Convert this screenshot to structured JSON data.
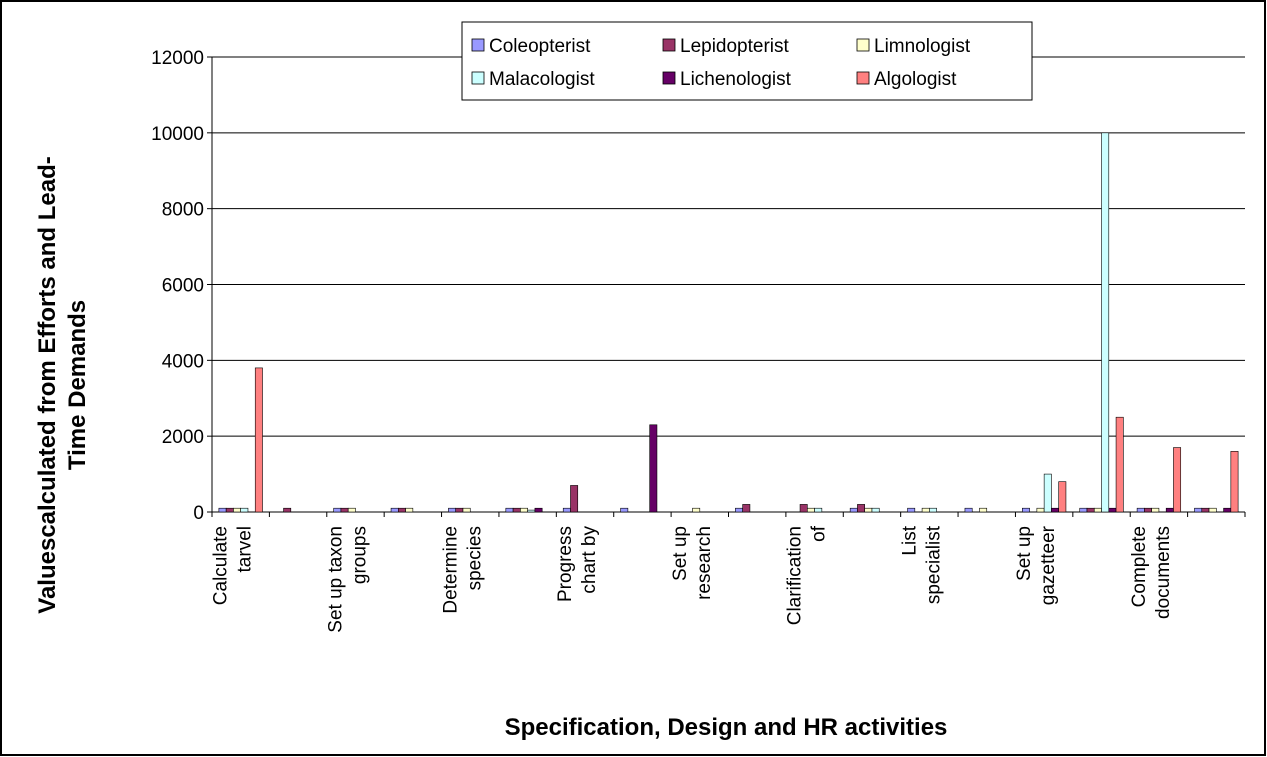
{
  "chart_data": {
    "type": "bar",
    "x_label": "Specification, Design and HR activities",
    "y_label": "Valuescalculated from Efforts and Lead-Time Demands",
    "categories": [
      "Calculate tarvel",
      null,
      "Set up taxon groups",
      null,
      "Determine species",
      null,
      "Progress chart by",
      null,
      "Set up research",
      null,
      "Clarification of",
      null,
      "List specialist",
      null,
      "Set up gazetteer",
      null,
      "Complete documents",
      null
    ],
    "series": [
      {
        "name": "Coleopterist",
        "color": "#9999ff",
        "values": [
          100,
          0,
          100,
          100,
          100,
          100,
          100,
          100,
          0,
          100,
          0,
          100,
          100,
          100,
          100,
          100,
          100,
          100
        ]
      },
      {
        "name": "Lepidopterist",
        "color": "#993366",
        "values": [
          100,
          100,
          100,
          100,
          100,
          100,
          700,
          0,
          0,
          200,
          200,
          200,
          0,
          0,
          0,
          100,
          100,
          100
        ]
      },
      {
        "name": "Limnologist",
        "color": "#ffffcc",
        "values": [
          100,
          0,
          100,
          100,
          100,
          100,
          0,
          0,
          100,
          0,
          100,
          100,
          100,
          100,
          100,
          100,
          100,
          100
        ]
      },
      {
        "name": "Malacologist",
        "color": "#ccffff",
        "values": [
          100,
          0,
          0,
          0,
          0,
          50,
          0,
          0,
          0,
          0,
          100,
          100,
          100,
          0,
          1000,
          10000,
          0,
          0
        ]
      },
      {
        "name": "Lichenologist",
        "color": "#660066",
        "values": [
          0,
          0,
          0,
          0,
          0,
          100,
          0,
          2300,
          0,
          0,
          0,
          0,
          0,
          0,
          100,
          100,
          100,
          100
        ]
      },
      {
        "name": "Algologist",
        "color": "#ff8080",
        "values": [
          3800,
          0,
          0,
          0,
          0,
          0,
          0,
          0,
          0,
          0,
          0,
          0,
          0,
          0,
          800,
          2500,
          1700,
          1600
        ]
      }
    ],
    "ylim": [
      0,
      12000
    ],
    "yticks": [
      0,
      2000,
      4000,
      6000,
      8000,
      10000,
      12000
    ],
    "grid": true,
    "legend": "top"
  }
}
